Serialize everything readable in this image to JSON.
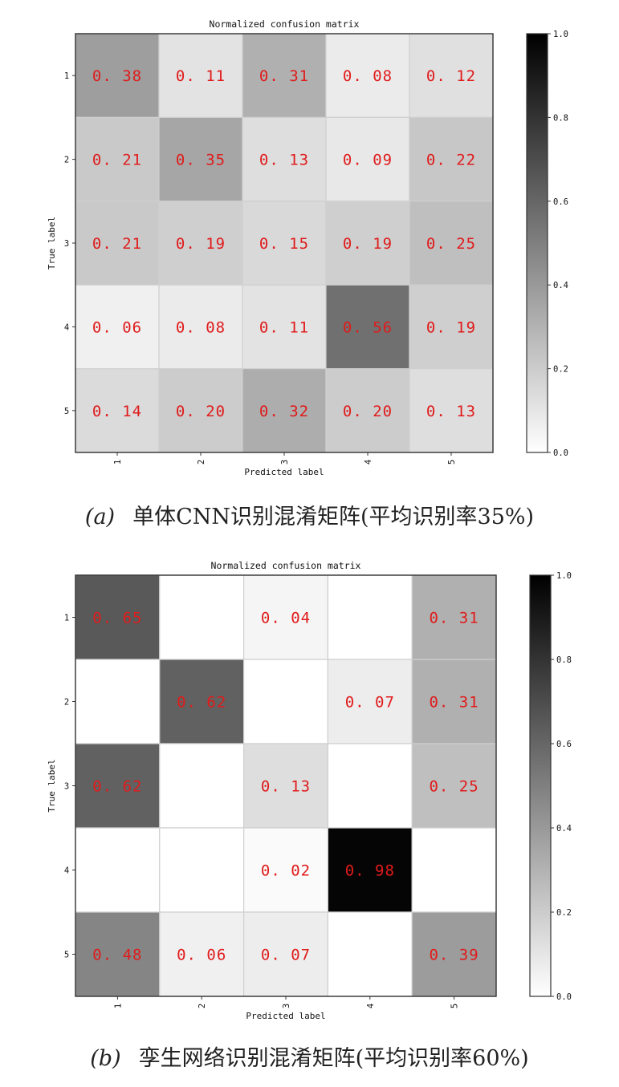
{
  "chart_data": [
    {
      "type": "heatmap",
      "title": "Normalized confusion matrix",
      "xlabel": "Predicted label",
      "ylabel": "True label",
      "x_categories": [
        "1",
        "2",
        "3",
        "4",
        "5"
      ],
      "y_categories": [
        "1",
        "2",
        "3",
        "4",
        "5"
      ],
      "values": [
        [
          0.38,
          0.11,
          0.31,
          0.08,
          0.12
        ],
        [
          0.21,
          0.35,
          0.13,
          0.09,
          0.22
        ],
        [
          0.21,
          0.19,
          0.15,
          0.19,
          0.25
        ],
        [
          0.06,
          0.08,
          0.11,
          0.56,
          0.19
        ],
        [
          0.14,
          0.2,
          0.32,
          0.2,
          0.13
        ]
      ],
      "cell_labels": [
        [
          "0.38",
          "0.11",
          "0.31",
          "0.08",
          "0.12"
        ],
        [
          "0.21",
          "0.35",
          "0.13",
          "0.09",
          "0.22"
        ],
        [
          "0.21",
          "0.19",
          "0.15",
          "0.19",
          "0.25"
        ],
        [
          "0.06",
          "0.08",
          "0.11",
          "0.56",
          "0.19"
        ],
        [
          "0.14",
          "0.20",
          "0.32",
          "0.20",
          "0.13"
        ]
      ],
      "colorbar": {
        "range": [
          0,
          1
        ],
        "ticks": [
          "0.0",
          "0.2",
          "0.4",
          "0.6",
          "0.8",
          "1.0"
        ],
        "colormap": "greys"
      },
      "label_color": "#e01b1b",
      "caption_tag": "(a)",
      "caption": "单体CNN识别混淆矩阵(平均识别率35%)"
    },
    {
      "type": "heatmap",
      "title": "Normalized confusion matrix",
      "xlabel": "Predicted label",
      "ylabel": "True label",
      "x_categories": [
        "1",
        "2",
        "3",
        "4",
        "5"
      ],
      "y_categories": [
        "1",
        "2",
        "3",
        "4",
        "5"
      ],
      "values": [
        [
          0.65,
          0,
          0.04,
          0,
          0.31
        ],
        [
          0,
          0.62,
          0,
          0.07,
          0.31
        ],
        [
          0.62,
          0,
          0.13,
          0,
          0.25
        ],
        [
          0,
          0,
          0.02,
          0.98,
          0
        ],
        [
          0.48,
          0.06,
          0.07,
          0,
          0.39
        ]
      ],
      "cell_labels": [
        [
          "0.65",
          "",
          "0.04",
          "",
          "0.31"
        ],
        [
          "",
          "0.62",
          "",
          "0.07",
          "0.31"
        ],
        [
          "0.62",
          "",
          "0.13",
          "",
          "0.25"
        ],
        [
          "",
          "",
          "0.02",
          "0.98",
          ""
        ],
        [
          "0.48",
          "0.06",
          "0.07",
          "",
          "0.39"
        ]
      ],
      "colorbar": {
        "range": [
          0,
          1
        ],
        "ticks": [
          "0.0",
          "0.2",
          "0.4",
          "0.6",
          "0.8",
          "1.0"
        ],
        "colormap": "greys"
      },
      "label_color": "#e01b1b",
      "caption_tag": "(b)",
      "caption": "孪生网络识别混淆矩阵(平均识别率60%)"
    }
  ]
}
